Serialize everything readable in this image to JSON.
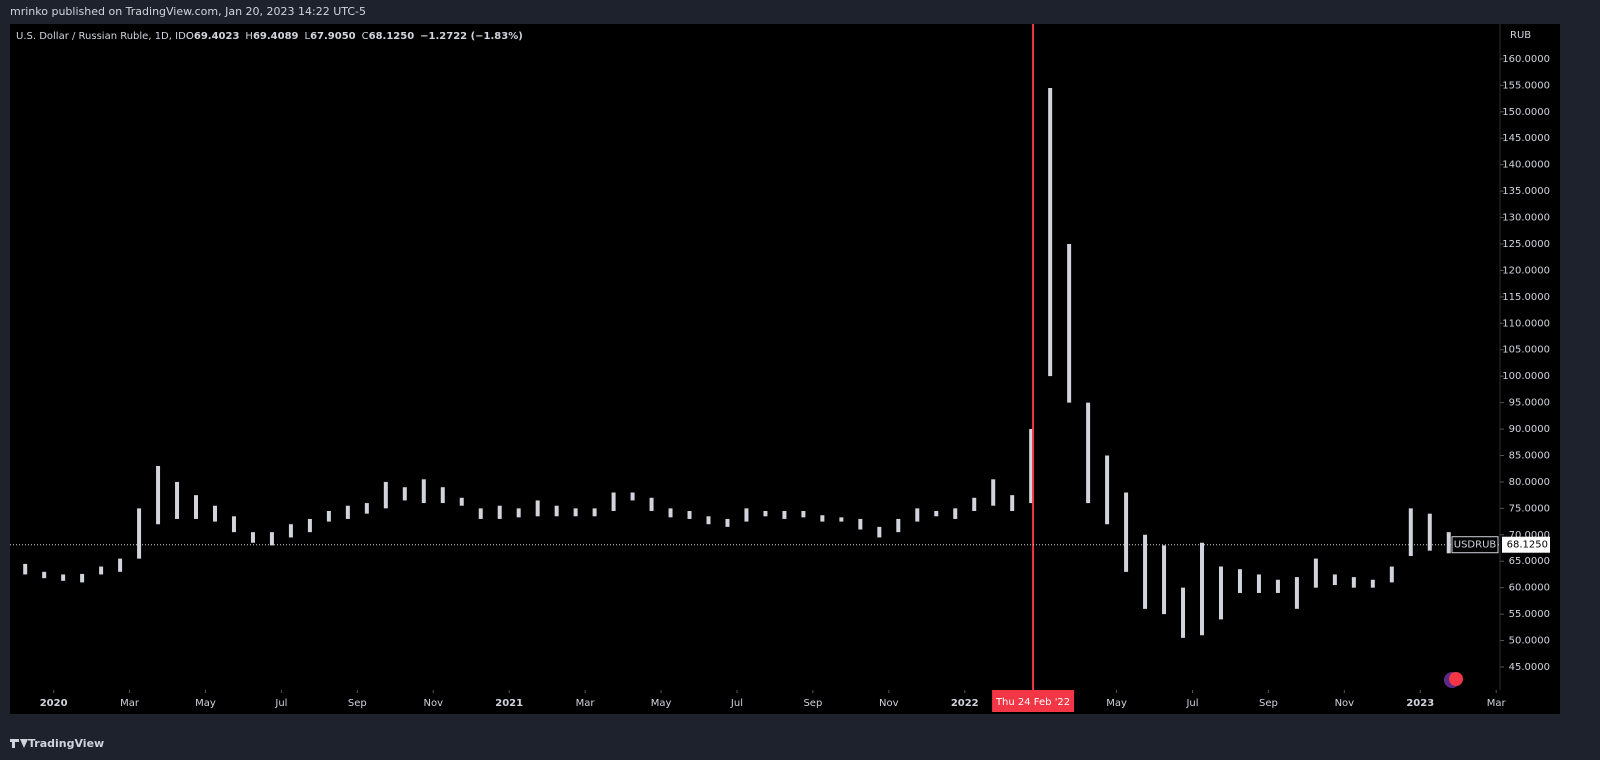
{
  "header": {
    "title": "mrinko published on TradingView.com, Jan 20, 2023 14:22 UTC-5"
  },
  "footer": {
    "brand": "TradingView"
  },
  "chart_data": {
    "type": "hilo",
    "title": "U.S. Dollar / Russian Ruble, 1D, IDC",
    "ohlc_legend": [
      [
        "O",
        "69.4023"
      ],
      [
        "H",
        "69.4089"
      ],
      [
        "L",
        "67.9050"
      ],
      [
        "C",
        "68.1250"
      ],
      [
        "",
        "−1.2722 (−1.83%)"
      ]
    ],
    "y_unit": "RUB",
    "color": "#d1d4dc",
    "low": [
      62.5,
      61.8,
      61.3,
      61,
      62.5,
      63,
      65.5,
      72,
      73,
      73,
      72.5,
      70.5,
      68.5,
      68,
      69.5,
      70.5,
      72.5,
      73,
      74,
      75,
      76.5,
      76,
      76,
      75.5,
      73,
      73,
      73.3,
      73.5,
      73.5,
      73.5,
      73.5,
      74.5,
      76.5,
      74.5,
      73.3,
      73,
      72,
      71.5,
      72.5,
      73.5,
      73,
      73.3,
      72.5,
      72.5,
      71,
      69.5,
      70.5,
      72.5,
      73.5,
      73,
      74.5,
      75.5,
      74.5,
      76,
      100,
      95,
      76,
      72,
      63,
      56,
      55,
      50.5,
      51,
      54,
      59,
      59,
      59,
      56,
      60,
      60.5,
      60,
      60,
      61,
      66,
      67,
      66.5
    ],
    "high": [
      64.5,
      63,
      62.5,
      62.6,
      64,
      65.5,
      75,
      83,
      80,
      77.5,
      75.5,
      73.5,
      70.5,
      70.5,
      72,
      73,
      74.5,
      75.5,
      76,
      80,
      79,
      80.5,
      79,
      77,
      75,
      75.5,
      75,
      76.5,
      75.5,
      75,
      75,
      78,
      78,
      77,
      75,
      74.5,
      73.5,
      73,
      75,
      74.5,
      74.5,
      74.5,
      73.7,
      73.3,
      73,
      71.5,
      73,
      75,
      74.5,
      75,
      77,
      80.5,
      77.5,
      90,
      154.5,
      125,
      95,
      85,
      78,
      70,
      68,
      60,
      68.5,
      64,
      63.5,
      62.5,
      61.5,
      62,
      65.5,
      62.5,
      62,
      61.5,
      64,
      75,
      74,
      70.5
    ],
    "xlim": [
      -0.3,
      78.2
    ],
    "xticks": [
      {
        "value": 2,
        "label": "2020"
      },
      {
        "value": 6,
        "label": "Mar"
      },
      {
        "value": 10,
        "label": "May"
      },
      {
        "value": 14,
        "label": "Jul"
      },
      {
        "value": 18,
        "label": "Sep"
      },
      {
        "value": 22,
        "label": "Nov"
      },
      {
        "value": 26,
        "label": "2021"
      },
      {
        "value": 30,
        "label": "Mar"
      },
      {
        "value": 34,
        "label": "May"
      },
      {
        "value": 38,
        "label": "Jul"
      },
      {
        "value": 42,
        "label": "Sep"
      },
      {
        "value": 46,
        "label": "Nov"
      },
      {
        "value": 50,
        "label": "2022"
      },
      {
        "value": 58,
        "label": "May"
      },
      {
        "value": 62,
        "label": "Jul"
      },
      {
        "value": 66,
        "label": "Sep"
      },
      {
        "value": 70,
        "label": "Nov"
      },
      {
        "value": 74,
        "label": "2023"
      },
      {
        "value": 78,
        "label": "Mar"
      }
    ],
    "event": {
      "value": 53.6,
      "label": "Thu 24 Feb '22",
      "color": "#f23645"
    },
    "ylim": [
      40.65,
      166.6
    ],
    "yticks": [
      {
        "value": 45,
        "label": "45.0000"
      },
      {
        "value": 50,
        "label": "50.0000"
      },
      {
        "value": 55,
        "label": "55.0000"
      },
      {
        "value": 60,
        "label": "60.0000"
      },
      {
        "value": 65,
        "label": "65.0000"
      },
      {
        "value": 70,
        "label": "70.0000"
      },
      {
        "value": 75,
        "label": "75.0000"
      },
      {
        "value": 80,
        "label": "80.0000"
      },
      {
        "value": 85,
        "label": "85.0000"
      },
      {
        "value": 90,
        "label": "90.0000"
      },
      {
        "value": 95,
        "label": "95.0000"
      },
      {
        "value": 100,
        "label": "100.0000"
      },
      {
        "value": 105,
        "label": "105.0000"
      },
      {
        "value": 110,
        "label": "110.0000"
      },
      {
        "value": 115,
        "label": "115.0000"
      },
      {
        "value": 120,
        "label": "120.0000"
      },
      {
        "value": 125,
        "label": "125.0000"
      },
      {
        "value": 130,
        "label": "130.0000"
      },
      {
        "value": 135,
        "label": "135.0000"
      },
      {
        "value": 140,
        "label": "140.0000"
      },
      {
        "value": 145,
        "label": "145.0000"
      },
      {
        "value": 150,
        "label": "150.0000"
      },
      {
        "value": 155,
        "label": "155.0000"
      },
      {
        "value": 160,
        "label": "160.0000"
      }
    ],
    "last_price": {
      "value": 68.125,
      "label": "68.1250",
      "symbol": "USDRUB"
    }
  }
}
